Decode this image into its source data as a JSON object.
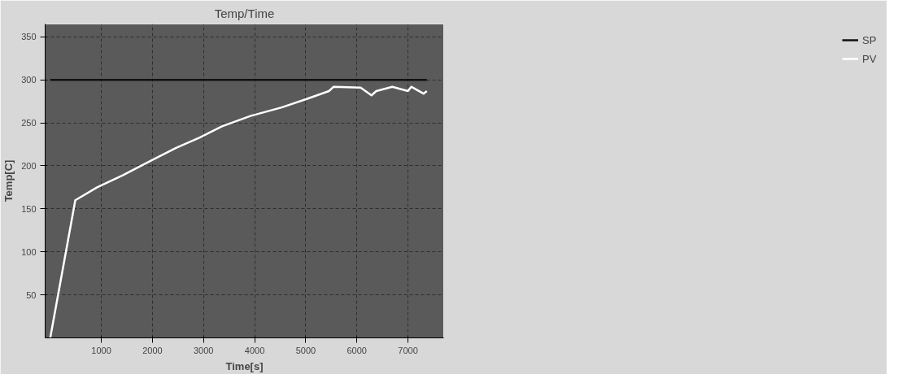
{
  "chart_data": {
    "type": "line",
    "title": "Temp/Time",
    "xlabel": "Time[s]",
    "ylabel": "Temp[C]",
    "xlim": [
      -100,
      7700
    ],
    "ylim": [
      0,
      365
    ],
    "xticks": [
      1000,
      2000,
      3000,
      4000,
      5000,
      6000,
      7000
    ],
    "yticks": [
      50,
      100,
      150,
      200,
      250,
      300,
      350
    ],
    "grid": true,
    "legend": "right",
    "line_style": "solid",
    "series": [
      {
        "name": "SP",
        "color": "#111111",
        "x": [
          0,
          7370
        ],
        "values": [
          300,
          300
        ]
      },
      {
        "name": "PV",
        "color": "#ffffff",
        "x": [
          0,
          490,
          917,
          1417,
          2000,
          2463,
          2926,
          3361,
          3917,
          4528,
          5028,
          5454,
          5546,
          6074,
          6287,
          6380,
          6694,
          7000,
          7065,
          7305,
          7370
        ],
        "values": [
          0,
          160,
          175,
          189,
          207,
          221,
          233,
          246,
          258,
          268,
          278,
          287,
          292,
          291,
          282,
          287,
          292,
          287,
          292,
          284,
          287
        ]
      }
    ]
  }
}
